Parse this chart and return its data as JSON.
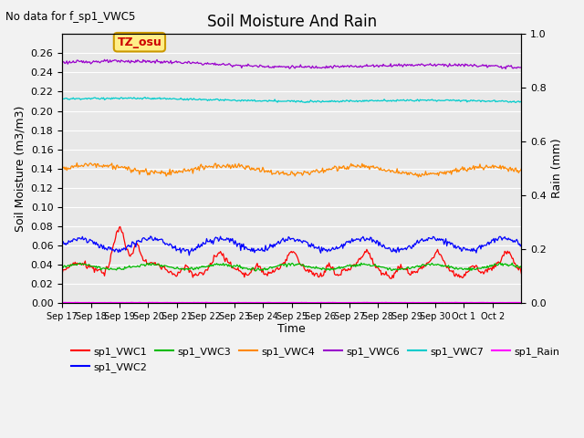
{
  "title": "Soil Moisture And Rain",
  "no_data_text": "No data for f_sp1_VWC5",
  "annotation_text": "TZ_osu",
  "xlabel": "Time",
  "ylabel_left": "Soil Moisture (m3/m3)",
  "ylabel_right": "Rain (mm)",
  "ylim_left": [
    0.0,
    0.28
  ],
  "ylim_right": [
    0.0,
    1.0
  ],
  "background_color": "#e8e8e8",
  "fig_facecolor": "#f2f2f2",
  "grid_color": "#ffffff",
  "n_points": 500,
  "xtick_labels": [
    "Sep 17",
    "Sep 18",
    "Sep 19",
    "Sep 20",
    "Sep 21",
    "Sep 22",
    "Sep 23",
    "Sep 24",
    "Sep 25",
    "Sep 26",
    "Sep 27",
    "Sep 28",
    "Sep 29",
    "Sep 30",
    "Oct 1",
    "Oct 2"
  ],
  "yticks_left": [
    0.0,
    0.02,
    0.04,
    0.06,
    0.08,
    0.1,
    0.12,
    0.14,
    0.16,
    0.18,
    0.2,
    0.22,
    0.24,
    0.26
  ],
  "yticks_right": [
    0.0,
    0.2,
    0.4,
    0.6,
    0.8,
    1.0
  ],
  "colors": {
    "vwc1": "#ff0000",
    "vwc2": "#0000ff",
    "vwc3": "#00bb00",
    "vwc4": "#ff8800",
    "vwc6": "#9900cc",
    "vwc7": "#00cccc",
    "rain": "#ff00ff"
  },
  "legend_entries": [
    [
      "sp1_VWC1",
      "#ff0000"
    ],
    [
      "sp1_VWC2",
      "#0000ff"
    ],
    [
      "sp1_VWC3",
      "#00bb00"
    ],
    [
      "sp1_VWC4",
      "#ff8800"
    ],
    [
      "sp1_VWC6",
      "#9900cc"
    ],
    [
      "sp1_VWC7",
      "#00cccc"
    ],
    [
      "sp1_Rain",
      "#ff00ff"
    ]
  ]
}
